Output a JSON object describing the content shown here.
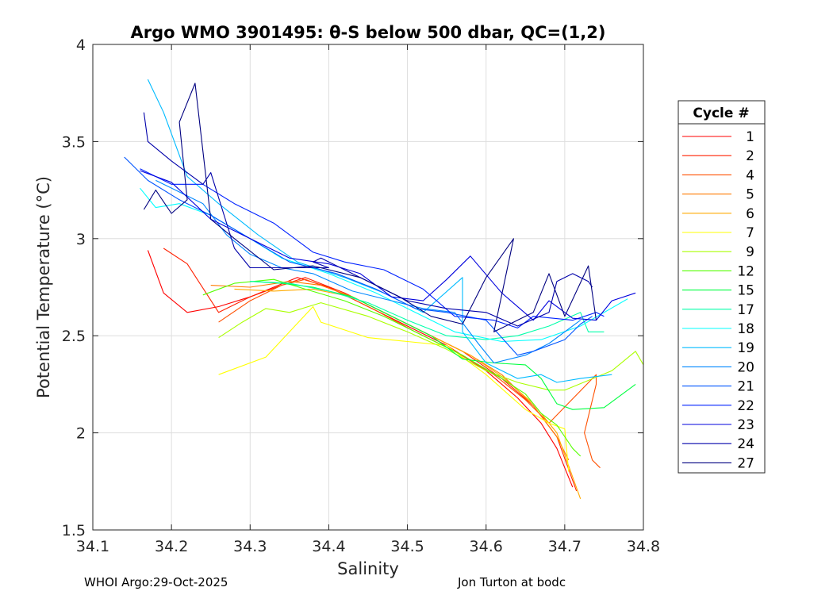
{
  "chart_data": {
    "type": "line",
    "title": "Argo WMO 3901495: θ-S below 500 dbar,  QC=(1,2)",
    "xlabel": "Salinity",
    "ylabel": "Potential Temperature (°C)",
    "xlim": [
      34.1,
      34.8
    ],
    "ylim": [
      1.5,
      4
    ],
    "xticks": [
      34.1,
      34.2,
      34.3,
      34.4,
      34.5,
      34.6,
      34.7,
      34.8
    ],
    "yticks": [
      1.5,
      2,
      2.5,
      3,
      3.5,
      4
    ],
    "xtick_labels": [
      "34.1",
      "34.2",
      "34.3",
      "34.4",
      "34.5",
      "34.6",
      "34.7",
      "34.8"
    ],
    "ytick_labels": [
      "1.5",
      "2",
      "2.5",
      "3",
      "3.5",
      "4"
    ],
    "grid": true,
    "legend_title": "Cycle #",
    "legend_position": "outside-right",
    "series": [
      {
        "name": "1",
        "color": "#ff0000",
        "x": [
          34.17,
          34.19,
          34.22,
          34.26,
          34.3,
          34.33,
          34.36,
          34.4,
          34.45,
          34.5,
          34.55,
          34.6,
          34.64,
          34.67,
          34.69,
          34.71
        ],
        "y": [
          2.94,
          2.72,
          2.62,
          2.65,
          2.7,
          2.75,
          2.8,
          2.75,
          2.65,
          2.55,
          2.45,
          2.32,
          2.18,
          2.05,
          1.92,
          1.72
        ]
      },
      {
        "name": "2",
        "color": "#ff2000",
        "x": [
          34.19,
          34.22,
          34.26,
          34.3,
          34.34,
          34.37,
          34.42,
          34.47,
          34.52,
          34.57,
          34.62,
          34.66,
          34.69,
          34.715
        ],
        "y": [
          2.95,
          2.87,
          2.62,
          2.7,
          2.76,
          2.8,
          2.72,
          2.62,
          2.52,
          2.42,
          2.28,
          2.14,
          1.98,
          1.7
        ]
      },
      {
        "name": "4",
        "color": "#ff5000",
        "x": [
          34.26,
          34.3,
          34.34,
          34.37,
          34.41,
          34.46,
          34.51,
          34.56,
          34.61,
          34.65,
          34.68,
          34.74,
          34.74,
          34.725,
          34.735,
          34.745
        ],
        "y": [
          2.57,
          2.68,
          2.76,
          2.79,
          2.73,
          2.63,
          2.52,
          2.42,
          2.3,
          2.17,
          2.05,
          2.3,
          2.25,
          2.0,
          1.86,
          1.82
        ]
      },
      {
        "name": "5",
        "color": "#ff7a00",
        "x": [
          34.25,
          34.3,
          34.35,
          34.39,
          34.43,
          34.48,
          34.53,
          34.58,
          34.62,
          34.66,
          34.69,
          34.705
        ],
        "y": [
          2.76,
          2.75,
          2.78,
          2.76,
          2.7,
          2.6,
          2.5,
          2.4,
          2.3,
          2.14,
          1.98,
          1.86
        ]
      },
      {
        "name": "6",
        "color": "#ffaa00",
        "x": [
          34.28,
          34.33,
          34.38,
          34.43,
          34.48,
          34.53,
          34.58,
          34.62,
          34.66,
          34.69,
          34.72
        ],
        "y": [
          2.74,
          2.73,
          2.74,
          2.7,
          2.6,
          2.5,
          2.4,
          2.29,
          2.15,
          2.0,
          1.66
        ]
      },
      {
        "name": "7",
        "color": "#ffff00",
        "x": [
          34.26,
          34.32,
          34.38,
          34.39,
          34.45,
          34.5,
          34.55,
          34.6,
          34.65,
          34.68,
          34.7,
          34.705
        ],
        "y": [
          2.3,
          2.39,
          2.65,
          2.57,
          2.49,
          2.47,
          2.45,
          2.3,
          2.12,
          2.05,
          2.02,
          1.8
        ]
      },
      {
        "name": "9",
        "color": "#aaff00",
        "x": [
          34.26,
          34.29,
          34.32,
          34.35,
          34.39,
          34.45,
          34.5,
          34.55,
          34.6,
          34.64,
          34.68,
          34.7,
          34.76,
          34.79,
          34.8
        ],
        "y": [
          2.49,
          2.57,
          2.64,
          2.62,
          2.67,
          2.6,
          2.52,
          2.43,
          2.32,
          2.26,
          2.22,
          2.22,
          2.32,
          2.42,
          2.35
        ]
      },
      {
        "name": "12",
        "color": "#55ff00",
        "x": [
          34.24,
          34.28,
          34.33,
          34.37,
          34.42,
          34.47,
          34.52,
          34.57,
          34.62,
          34.65,
          34.67,
          34.69,
          34.7,
          34.71,
          34.72
        ],
        "y": [
          2.71,
          2.77,
          2.79,
          2.74,
          2.68,
          2.6,
          2.5,
          2.4,
          2.28,
          2.2,
          2.1,
          2.04,
          1.98,
          1.92,
          1.88
        ]
      },
      {
        "name": "15",
        "color": "#00ff40",
        "x": [
          34.3,
          34.34,
          34.38,
          34.43,
          34.48,
          34.53,
          34.57,
          34.61,
          34.65,
          34.67,
          34.69,
          34.71,
          34.75,
          34.79
        ],
        "y": [
          2.78,
          2.77,
          2.75,
          2.7,
          2.6,
          2.5,
          2.38,
          2.36,
          2.35,
          2.28,
          2.15,
          2.12,
          2.13,
          2.25
        ]
      },
      {
        "name": "17",
        "color": "#00ffaa",
        "x": [
          34.3,
          34.35,
          34.4,
          34.45,
          34.5,
          34.55,
          34.6,
          34.64,
          34.68,
          34.72,
          34.73,
          34.74,
          34.75
        ],
        "y": [
          2.78,
          2.77,
          2.73,
          2.67,
          2.58,
          2.5,
          2.48,
          2.5,
          2.55,
          2.62,
          2.52,
          2.52,
          2.52
        ]
      },
      {
        "name": "18",
        "color": "#00ffff",
        "x": [
          34.16,
          34.18,
          34.21,
          34.25,
          34.3,
          34.34,
          34.4,
          34.46,
          34.51,
          34.56,
          34.62,
          34.67,
          34.72,
          34.75,
          34.78
        ],
        "y": [
          3.26,
          3.16,
          3.18,
          3.12,
          3.0,
          2.9,
          2.82,
          2.72,
          2.62,
          2.52,
          2.47,
          2.48,
          2.55,
          2.62,
          2.69
        ]
      },
      {
        "name": "19",
        "color": "#00bbff",
        "x": [
          34.17,
          34.19,
          34.22,
          34.26,
          34.31,
          34.36,
          34.42,
          34.47,
          34.52,
          34.57,
          34.57,
          34.6,
          34.64,
          34.67,
          34.69,
          34.72,
          34.76
        ],
        "y": [
          3.82,
          3.65,
          3.32,
          3.18,
          3.02,
          2.88,
          2.8,
          2.72,
          2.62,
          2.8,
          2.52,
          2.36,
          2.28,
          2.3,
          2.26,
          2.28,
          2.3
        ]
      },
      {
        "name": "20",
        "color": "#0088ff",
        "x": [
          34.18,
          34.21,
          34.24,
          34.27,
          34.3,
          34.34,
          34.38,
          34.43,
          34.48,
          34.52,
          34.56,
          34.59,
          34.61,
          34.65,
          34.68,
          34.72
        ],
        "y": [
          3.3,
          3.24,
          3.18,
          3.02,
          2.92,
          2.85,
          2.82,
          2.73,
          2.68,
          2.64,
          2.62,
          2.46,
          2.36,
          2.4,
          2.46,
          2.58
        ]
      },
      {
        "name": "21",
        "color": "#0055ff",
        "x": [
          34.14,
          34.17,
          34.21,
          34.25,
          34.3,
          34.35,
          34.41,
          34.46,
          34.51,
          34.55,
          34.6,
          34.64,
          34.66,
          34.7,
          34.72,
          34.735
        ],
        "y": [
          3.42,
          3.3,
          3.2,
          3.12,
          3.0,
          2.88,
          2.82,
          2.74,
          2.64,
          2.62,
          2.58,
          2.4,
          2.42,
          2.48,
          2.56,
          2.6
        ]
      },
      {
        "name": "22",
        "color": "#0022ff",
        "x": [
          34.16,
          34.2,
          34.24,
          34.28,
          34.33,
          34.38,
          34.42,
          34.47,
          34.52,
          34.56,
          34.61,
          34.64,
          34.66,
          34.71,
          34.74,
          34.75
        ],
        "y": [
          3.36,
          3.28,
          3.28,
          3.18,
          3.08,
          2.93,
          2.88,
          2.84,
          2.74,
          2.6,
          2.58,
          2.54,
          2.6,
          2.58,
          2.62,
          2.6
        ]
      },
      {
        "name": "23",
        "color": "#0000dd",
        "x": [
          34.16,
          34.2,
          34.25,
          34.3,
          34.35,
          34.4,
          34.44,
          34.48,
          34.52,
          34.55,
          34.58,
          34.62,
          34.66,
          34.68,
          34.71,
          34.74,
          34.76,
          34.79
        ],
        "y": [
          3.35,
          3.29,
          3.1,
          3.0,
          2.9,
          2.87,
          2.82,
          2.7,
          2.68,
          2.79,
          2.91,
          2.72,
          2.58,
          2.68,
          2.59,
          2.58,
          2.68,
          2.72
        ]
      },
      {
        "name": "24",
        "color": "#0000aa",
        "x": [
          34.165,
          34.17,
          34.2,
          34.24,
          34.25,
          34.28,
          34.3,
          34.4,
          34.38,
          34.39,
          34.45,
          34.5,
          34.55,
          34.6,
          34.64,
          34.68,
          34.69,
          34.71,
          34.73,
          34.735
        ],
        "y": [
          3.65,
          3.5,
          3.4,
          3.28,
          3.34,
          2.95,
          2.85,
          2.85,
          2.88,
          2.9,
          2.78,
          2.68,
          2.64,
          2.62,
          2.55,
          2.62,
          2.78,
          2.82,
          2.78,
          2.75
        ]
      },
      {
        "name": "27",
        "color": "#000080",
        "x": [
          34.165,
          34.18,
          34.2,
          34.22,
          34.21,
          34.23,
          34.25,
          34.28,
          34.33,
          34.38,
          34.44,
          34.49,
          34.53,
          34.57,
          34.6,
          34.635,
          34.61,
          34.63,
          34.66,
          34.68,
          34.7,
          34.73,
          34.74
        ],
        "y": [
          3.15,
          3.25,
          3.13,
          3.2,
          3.6,
          3.8,
          3.1,
          3.0,
          2.84,
          2.86,
          2.8,
          2.7,
          2.6,
          2.56,
          2.8,
          3.0,
          2.52,
          2.56,
          2.62,
          2.82,
          2.6,
          2.86,
          2.58
        ]
      }
    ]
  },
  "footer": {
    "left": "WHOI Argo:29-Oct-2025",
    "right": "Jon Turton at bodc"
  }
}
